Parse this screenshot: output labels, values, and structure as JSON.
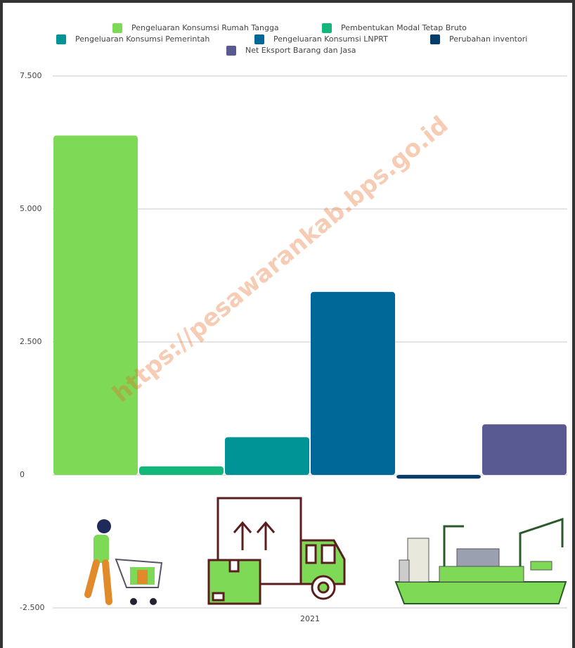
{
  "chart_data": {
    "type": "bar",
    "categories": [
      "2021"
    ],
    "series": [
      {
        "name": "Pengeluaran Konsumsi Rumah Tangga",
        "color": "#7ed957",
        "values": [
          6380
        ]
      },
      {
        "name": "Pembentukan Modal Tetap Bruto",
        "color": "#13b67b",
        "values": [
          160
        ]
      },
      {
        "name": "Pengeluaran Konsumsi Pemerintah",
        "color": "#009496",
        "values": [
          710
        ]
      },
      {
        "name": "Pengeluaran Konsumsi LNPRT",
        "color": "#006898",
        "values": [
          3440
        ]
      },
      {
        "name": "Perubahan inventori",
        "color": "#063c6a",
        "values": [
          -70
        ]
      },
      {
        "name": "Net Eksport Barang dan Jasa",
        "color": "#5a5a93",
        "values": [
          950
        ]
      }
    ],
    "ylim": [
      -2500,
      7500
    ],
    "yticks": [
      {
        "value": -2500,
        "label": "-2.500"
      },
      0,
      {
        "value": 2500,
        "label": "2.500"
      },
      {
        "value": 5000,
        "label": "5.000"
      },
      {
        "value": 7500,
        "label": "7.500"
      }
    ],
    "grid": true,
    "watermark": "https://pesawarankab.bps.go.id"
  }
}
